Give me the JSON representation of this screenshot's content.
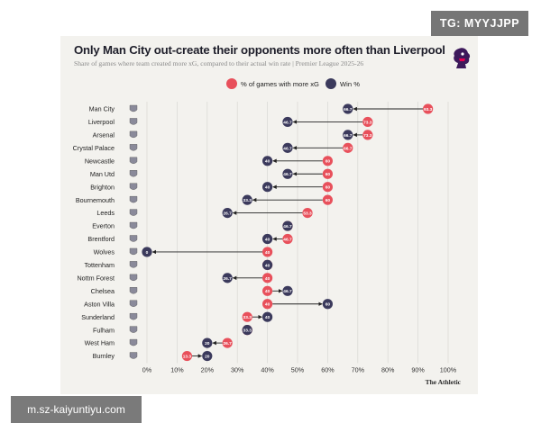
{
  "watermarks": {
    "top": "TG: MYYJJPP",
    "bottom": "m.sz-kaiyuntiyu.com"
  },
  "colors": {
    "xg": "#e8505b",
    "win": "#3b3a5c",
    "arrow": "#222222",
    "card": "#f3f2ee",
    "grid": "#d9d8d3"
  },
  "chart_data": {
    "type": "scatter",
    "title": "Only Man City out-create their opponents more often than Liverpool",
    "subtitle": "Share of games where team created more xG, compared to their actual win rate | Premier League 2025-26",
    "legend": [
      {
        "key": "xg",
        "label": "% of games with more xG"
      },
      {
        "key": "win",
        "label": "Win %"
      }
    ],
    "source": "The Athletic",
    "xlim": [
      0,
      100
    ],
    "xticks": [
      0,
      10,
      20,
      30,
      40,
      50,
      60,
      70,
      80,
      90,
      100
    ],
    "xtick_labels": [
      "0%",
      "10%",
      "20%",
      "30%",
      "40%",
      "50%",
      "60%",
      "70%",
      "80%",
      "90%",
      "100%"
    ],
    "teams": [
      {
        "name": "Man City",
        "xg": 93.3,
        "win": 66.7,
        "xg_label": "93.3",
        "win_label": "66.7"
      },
      {
        "name": "Liverpool",
        "xg": 73.3,
        "win": 46.7,
        "xg_label": "73.3",
        "win_label": "46.7"
      },
      {
        "name": "Arsenal",
        "xg": 73.3,
        "win": 66.7,
        "xg_label": "73.3",
        "win_label": "66.7"
      },
      {
        "name": "Crystal Palace",
        "xg": 66.7,
        "win": 46.7,
        "xg_label": "66.7",
        "win_label": "46.7"
      },
      {
        "name": "Newcastle",
        "xg": 60,
        "win": 40,
        "xg_label": "60",
        "win_label": "40"
      },
      {
        "name": "Man Utd",
        "xg": 60,
        "win": 46.7,
        "xg_label": "60",
        "win_label": "46.7"
      },
      {
        "name": "Brighton",
        "xg": 60,
        "win": 40,
        "xg_label": "60",
        "win_label": "40"
      },
      {
        "name": "Bournemouth",
        "xg": 60,
        "win": 33.3,
        "xg_label": "60",
        "win_label": "33.3"
      },
      {
        "name": "Leeds",
        "xg": 53.3,
        "win": 26.7,
        "xg_label": "53.3",
        "win_label": "26.7"
      },
      {
        "name": "Everton",
        "xg": 46.7,
        "win": 46.7,
        "xg_label": "46.7",
        "win_label": "46.7"
      },
      {
        "name": "Brentford",
        "xg": 46.7,
        "win": 40,
        "xg_label": "46.7",
        "win_label": "40"
      },
      {
        "name": "Wolves",
        "xg": 40,
        "win": 0,
        "xg_label": "40",
        "win_label": "0"
      },
      {
        "name": "Tottenham",
        "xg": 40,
        "win": 40,
        "xg_label": "40",
        "win_label": "40"
      },
      {
        "name": "Nottm Forest",
        "xg": 40,
        "win": 26.7,
        "xg_label": "40",
        "win_label": "26.7"
      },
      {
        "name": "Chelsea",
        "xg": 40,
        "win": 46.7,
        "xg_label": "40",
        "win_label": "46.7"
      },
      {
        "name": "Aston Villa",
        "xg": 40,
        "win": 60,
        "xg_label": "40",
        "win_label": "60"
      },
      {
        "name": "Sunderland",
        "xg": 33.3,
        "win": 40,
        "xg_label": "33.3",
        "win_label": "40"
      },
      {
        "name": "Fulham",
        "xg": 33.3,
        "win": 33.3,
        "xg_label": "33.3",
        "win_label": "33.3"
      },
      {
        "name": "West Ham",
        "xg": 26.7,
        "win": 20,
        "xg_label": "26.7",
        "win_label": "20"
      },
      {
        "name": "Burnley",
        "xg": 13.3,
        "win": 20,
        "xg_label": "13.3",
        "win_label": "20"
      }
    ]
  }
}
